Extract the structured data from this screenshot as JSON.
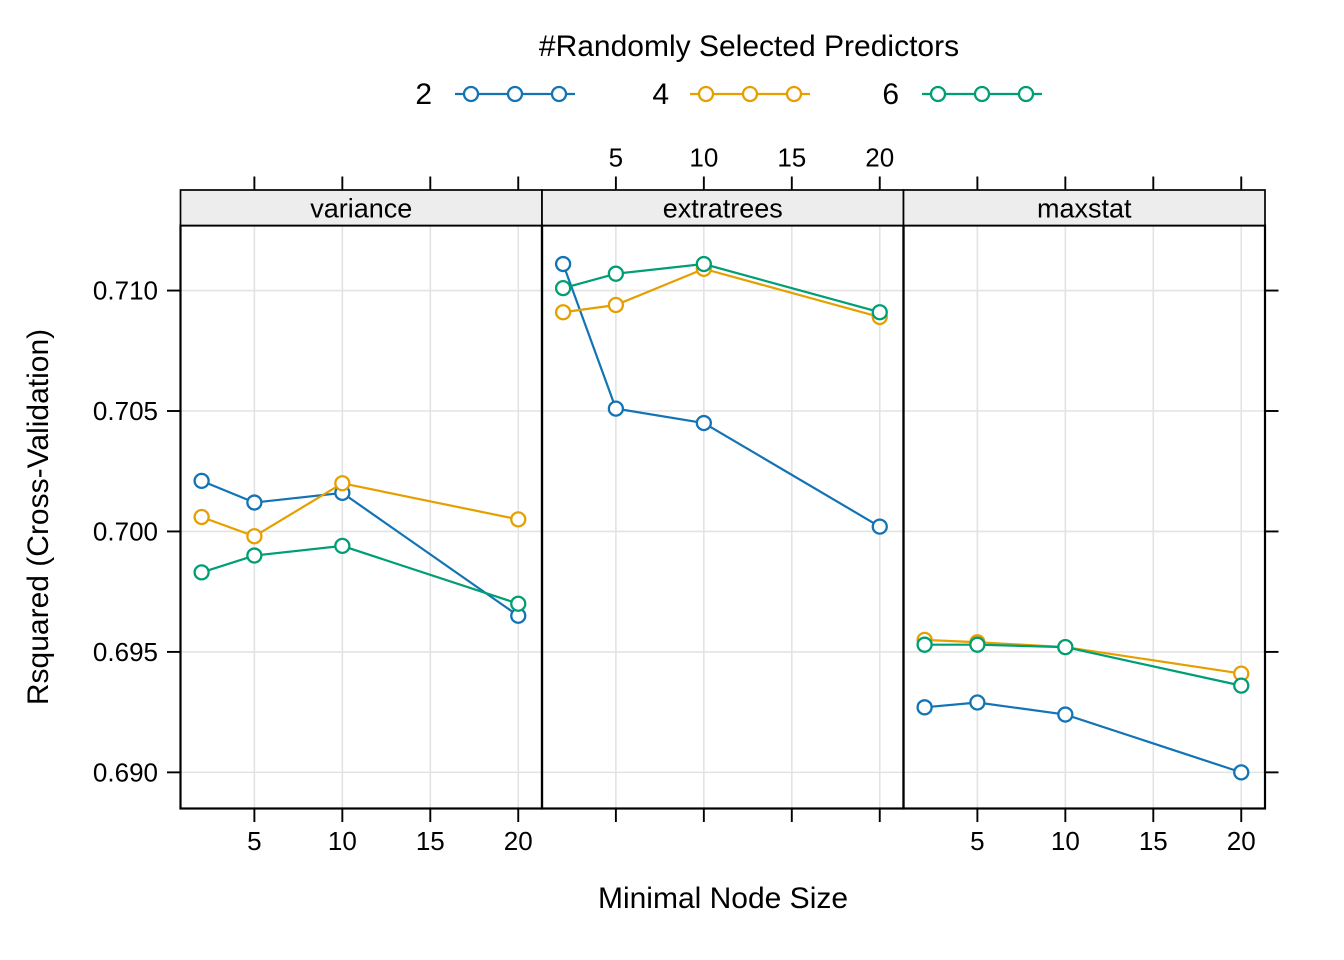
{
  "chart_data": {
    "type": "line",
    "title": "",
    "xlabel": "Minimal Node Size",
    "ylabel": "Rsquared (Cross-Validation)",
    "legend": {
      "title": "#Randomly Selected Predictors",
      "position": "top",
      "entries": [
        {
          "label": "2",
          "color": "#1273B5"
        },
        {
          "label": "4",
          "color": "#E69F00"
        },
        {
          "label": "6",
          "color": "#009E73"
        }
      ]
    },
    "x": [
      2,
      5,
      10,
      20
    ],
    "x_ticks": [
      5,
      10,
      15,
      20
    ],
    "xlim": [
      0.8,
      21.35
    ],
    "y_ticks": [
      0.69,
      0.695,
      0.7,
      0.705,
      0.71
    ],
    "y_tick_labels": [
      "0.690",
      "0.695",
      "0.700",
      "0.705",
      "0.710"
    ],
    "ylim": [
      0.6885,
      0.7127
    ],
    "grid": true,
    "panels": [
      {
        "label": "variance",
        "series": [
          {
            "name": "2",
            "color": "#1273B5",
            "values": [
              0.7021,
              0.7012,
              0.7016,
              0.6965
            ]
          },
          {
            "name": "4",
            "color": "#E69F00",
            "values": [
              0.7006,
              0.6998,
              0.702,
              0.7005
            ]
          },
          {
            "name": "6",
            "color": "#009E73",
            "values": [
              0.6983,
              0.699,
              0.6994,
              0.697
            ]
          }
        ]
      },
      {
        "label": "extratrees",
        "series": [
          {
            "name": "2",
            "color": "#1273B5",
            "values": [
              0.7111,
              0.7051,
              0.7045,
              0.7002
            ]
          },
          {
            "name": "4",
            "color": "#E69F00",
            "values": [
              0.7091,
              0.7094,
              0.7109,
              0.7089
            ]
          },
          {
            "name": "6",
            "color": "#009E73",
            "values": [
              0.7101,
              0.7107,
              0.7111,
              0.7091
            ]
          }
        ]
      },
      {
        "label": "maxstat",
        "series": [
          {
            "name": "2",
            "color": "#1273B5",
            "values": [
              0.6927,
              0.6929,
              0.6924,
              0.69
            ]
          },
          {
            "name": "4",
            "color": "#E69F00",
            "values": [
              0.6955,
              0.6954,
              0.6952,
              0.6941
            ]
          },
          {
            "name": "6",
            "color": "#009E73",
            "values": [
              0.6953,
              0.6953,
              0.6952,
              0.6936
            ]
          }
        ]
      }
    ],
    "axis_label_sides": {
      "bottom_labeled_panels": [
        0,
        2
      ],
      "top_labeled_panels": [
        1
      ]
    },
    "style_colors": {
      "gridline": "#E3E3E3",
      "strip_background": "#EDEDED",
      "panel_border": "#000000",
      "marker_fill": "#FFFFFF"
    }
  }
}
